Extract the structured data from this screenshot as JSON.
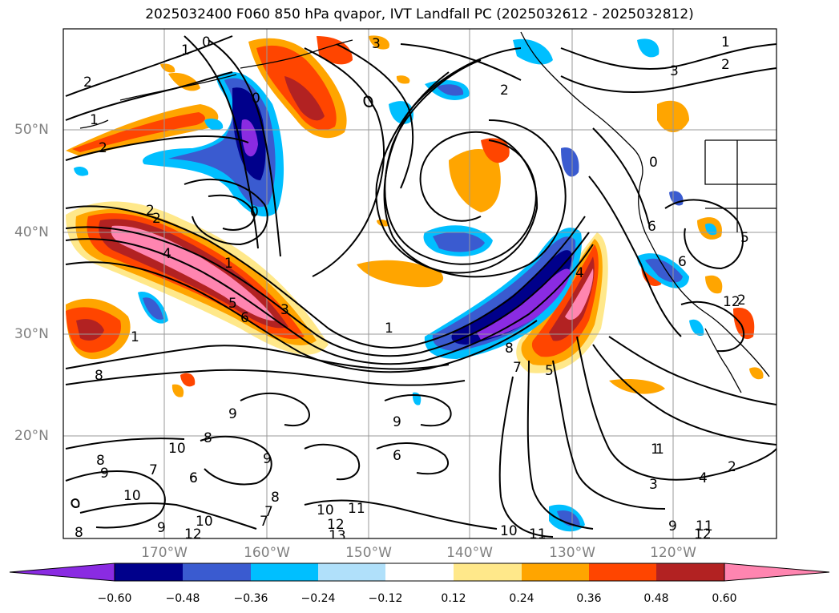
{
  "title": "2025032400 F060 850 hPa qvapor, IVT Landfall PC (2025032612 - 2025032812)",
  "lat_labels": [
    "50°N",
    "40°N",
    "30°N",
    "20°N"
  ],
  "lon_labels": [
    "170°W",
    "160°W",
    "150°W",
    "140°W",
    "130°W",
    "120°W"
  ],
  "colorbar": {
    "colors": [
      "#8a2be2",
      "#00008b",
      "#3a5bd0",
      "#00bfff",
      "#b0e0fa",
      "#ffffff",
      "#ffe88a",
      "#ffa500",
      "#ff4500",
      "#b22222",
      "#ff85b0"
    ],
    "ticks": [
      "−0.60",
      "−0.48",
      "−0.36",
      "−0.24",
      "−0.12",
      "0.12",
      "0.24",
      "0.36",
      "0.48",
      "0.60"
    ]
  },
  "contour_labels": [
    "0",
    "1",
    "2",
    "2",
    "1",
    "1",
    "2",
    "3",
    "2",
    "1",
    "2",
    "3",
    "0",
    "0",
    "2",
    "4",
    "1",
    "5",
    "6",
    "3",
    "1",
    "0",
    "4",
    "8",
    "7",
    "5",
    "6",
    "1",
    "2",
    "5",
    "6",
    "9",
    "8",
    "6",
    "9",
    "10",
    "9",
    "7",
    "8",
    "6",
    "9",
    "8",
    "10",
    "11",
    "10",
    "12",
    "13",
    "10",
    "11",
    "8",
    "7",
    "9",
    "10",
    "12",
    "12",
    "1",
    "2",
    "3",
    "4",
    "9",
    "11",
    "12",
    "8",
    "7",
    "6"
  ]
}
